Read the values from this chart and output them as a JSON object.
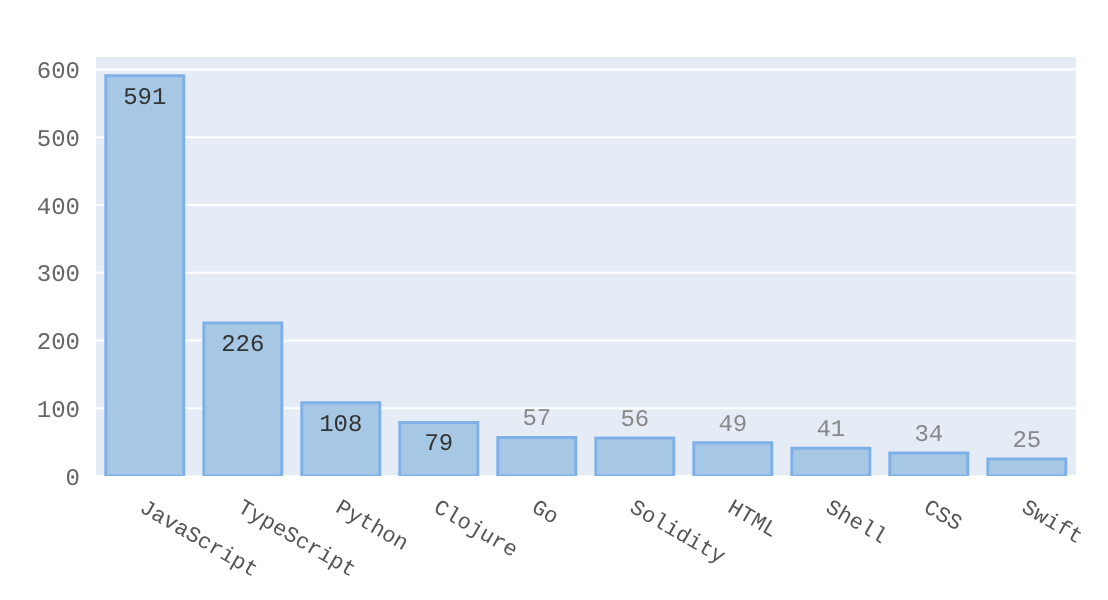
{
  "chart_data": {
    "type": "bar",
    "categories": [
      "JavaScript",
      "TypeScript",
      "Python",
      "Clojure",
      "Go",
      "Solidity",
      "HTML",
      "Shell",
      "CSS",
      "Swift"
    ],
    "values": [
      591,
      226,
      108,
      79,
      57,
      56,
      49,
      41,
      34,
      25
    ],
    "color": "#a6c8e4",
    "ylim": [
      0,
      620
    ],
    "yticks": [
      0,
      100,
      200,
      300,
      400,
      500,
      600
    ],
    "grid": "y",
    "data_labels": true
  }
}
